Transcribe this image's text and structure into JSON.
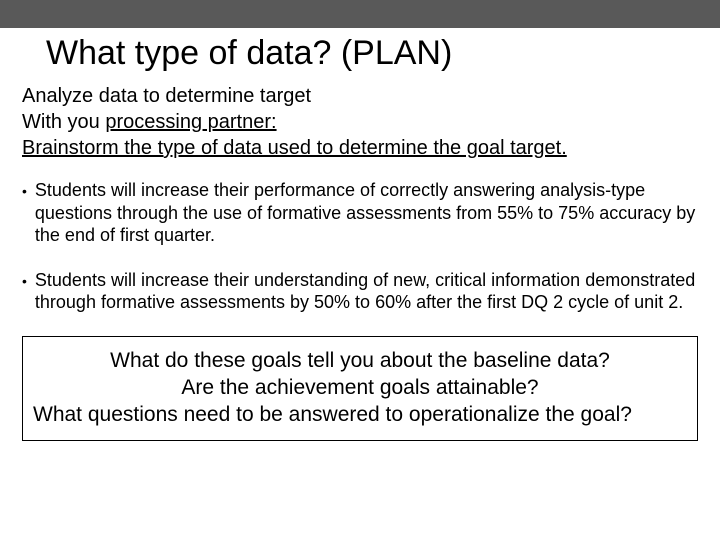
{
  "colors": {
    "top_bar": "#595959",
    "background": "#ffffff",
    "text": "#000000",
    "border": "#000000"
  },
  "typography": {
    "title_fontsize": 34,
    "intro_fontsize": 20,
    "bullet_fontsize": 18,
    "question_fontsize": 21,
    "font_family": "Arial"
  },
  "title": "What type of data?  (PLAN)",
  "intro": {
    "line1": "Analyze data to determine target",
    "line2_a": "With you ",
    "line2_b": "processing partner:",
    "line3": "Brainstorm the type of data used to determine the goal target."
  },
  "bullets": [
    "Students will increase their performance of correctly answering analysis-type questions through the use of formative assessments from 55% to 75% accuracy by the end of first quarter.",
    "Students will increase their understanding of new, critical information demonstrated through formative assessments by 50% to 60% after the first DQ 2 cycle of unit 2."
  ],
  "questions": {
    "q1": "What do these goals tell you about the baseline data?",
    "q2": "Are the achievement goals attainable?",
    "q3": "What questions need to be answered to operationalize the goal?"
  }
}
